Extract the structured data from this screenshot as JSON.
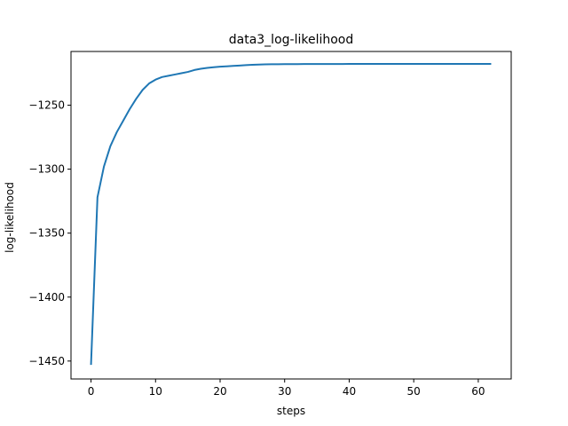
{
  "chart_data": {
    "type": "line",
    "title": "data3_log-likelihood",
    "xlabel": "steps",
    "ylabel": "log-likelihood",
    "xlim": [
      -3.1,
      65.1
    ],
    "ylim": [
      -1464,
      -1208
    ],
    "xticks": [
      0,
      10,
      20,
      30,
      40,
      50,
      60
    ],
    "yticks": [
      -1450,
      -1400,
      -1350,
      -1300,
      -1250
    ],
    "ytick_labels": [
      "−1450",
      "−1400",
      "−1350",
      "−1300",
      "−1250"
    ],
    "grid": false,
    "line_color": "#1f77b4",
    "series": [
      {
        "x": [
          0,
          1,
          2,
          3,
          4,
          5,
          6,
          7,
          8,
          9,
          10,
          11,
          12,
          13,
          14,
          15,
          16,
          17,
          18,
          19,
          20,
          21,
          22,
          23,
          24,
          25,
          26,
          27,
          28,
          29,
          30,
          31,
          32,
          33,
          34,
          35,
          36,
          37,
          38,
          39,
          40,
          41,
          42,
          43,
          44,
          45,
          46,
          47,
          48,
          49,
          50,
          51,
          52,
          53,
          54,
          55,
          56,
          57,
          58,
          59,
          60,
          61,
          62
        ],
        "y": [
          -1453,
          -1322,
          -1298,
          -1282,
          -1271,
          -1262,
          -1253,
          -1245,
          -1238,
          -1233,
          -1230,
          -1228,
          -1227,
          -1226,
          -1225,
          -1224,
          -1222.5,
          -1221.5,
          -1220.8,
          -1220.3,
          -1219.9,
          -1219.6,
          -1219.3,
          -1219,
          -1218.7,
          -1218.4,
          -1218.2,
          -1218.1,
          -1218,
          -1218,
          -1217.9,
          -1217.9,
          -1217.9,
          -1217.8,
          -1217.8,
          -1217.8,
          -1217.8,
          -1217.8,
          -1217.8,
          -1217.8,
          -1217.7,
          -1217.7,
          -1217.7,
          -1217.7,
          -1217.7,
          -1217.7,
          -1217.7,
          -1217.7,
          -1217.7,
          -1217.7,
          -1217.7,
          -1217.7,
          -1217.7,
          -1217.7,
          -1217.7,
          -1217.7,
          -1217.7,
          -1217.7,
          -1217.7,
          -1217.7,
          -1217.7,
          -1217.7,
          -1217.7
        ]
      }
    ]
  }
}
